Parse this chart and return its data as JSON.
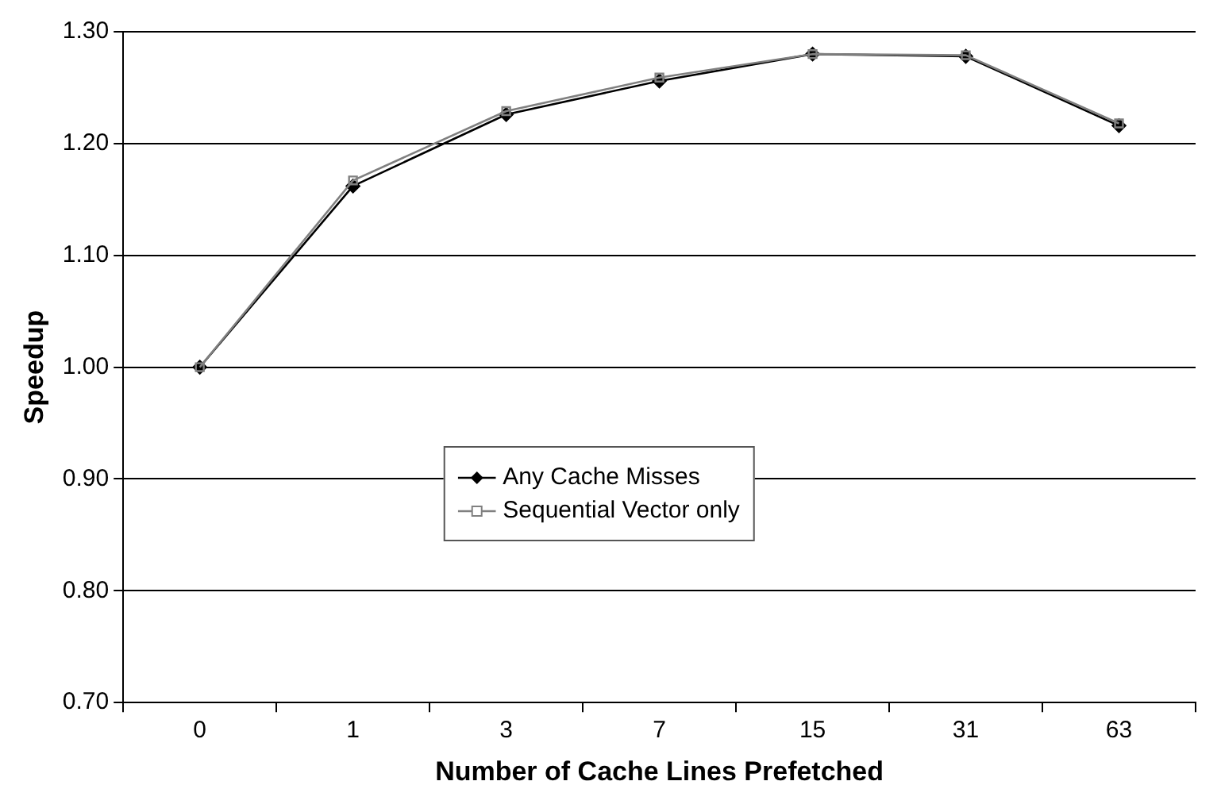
{
  "chart_data": {
    "type": "line",
    "xlabel": "Number of Cache Lines Prefetched",
    "ylabel": "Speedup",
    "categories": [
      "0",
      "1",
      "3",
      "7",
      "15",
      "31",
      "63"
    ],
    "series": [
      {
        "name": "Any Cache Misses",
        "color": "#000000",
        "marker": "diamond",
        "values": [
          1.0,
          1.162,
          1.226,
          1.256,
          1.28,
          1.278,
          1.216
        ]
      },
      {
        "name": "Sequential Vector only",
        "color": "#808080",
        "marker": "square",
        "values": [
          1.0,
          1.167,
          1.229,
          1.259,
          1.28,
          1.279,
          1.218
        ]
      }
    ],
    "ylim": [
      0.7,
      1.3
    ],
    "yticks": [
      {
        "value": 0.7,
        "label": "0.70"
      },
      {
        "value": 0.8,
        "label": "0.80"
      },
      {
        "value": 0.9,
        "label": "0.90"
      },
      {
        "value": 1.0,
        "label": "1.00"
      },
      {
        "value": 1.1,
        "label": "1.10"
      },
      {
        "value": 1.2,
        "label": "1.20"
      },
      {
        "value": 1.3,
        "label": "1.30"
      }
    ],
    "grid": "y",
    "legend": "center"
  }
}
